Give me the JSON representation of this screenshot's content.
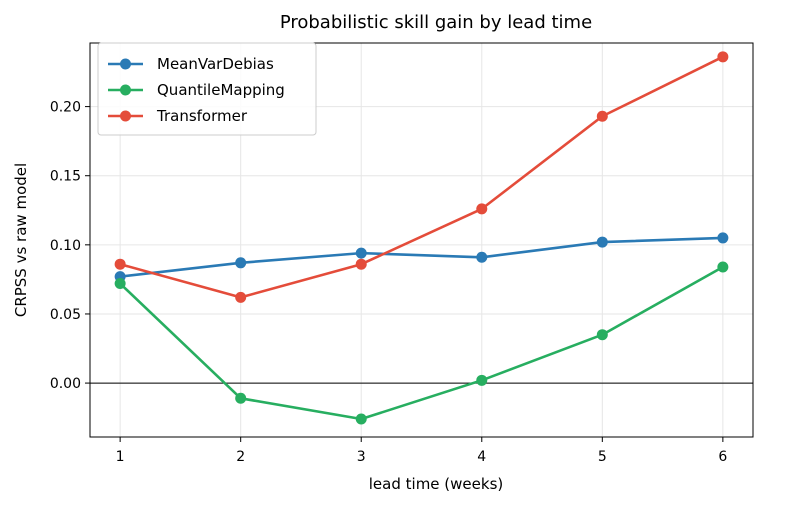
{
  "chart_data": {
    "type": "line",
    "title": "Probabilistic skill gain by lead time",
    "xlabel": "lead time (weeks)",
    "ylabel": "CRPSS vs raw model",
    "x": [
      1,
      2,
      3,
      4,
      5,
      6
    ],
    "xticks": [
      "1",
      "2",
      "3",
      "4",
      "5",
      "6"
    ],
    "yticks": [
      "0.00",
      "0.05",
      "0.10",
      "0.15",
      "0.20"
    ],
    "xlim": [
      0.75,
      6.25
    ],
    "ylim": [
      -0.039,
      0.246
    ],
    "grid": true,
    "zero_line": true,
    "legend_position": "top-left",
    "series": [
      {
        "name": "MeanVarDebias",
        "color": "#2a7ab5",
        "values": [
          0.077,
          0.087,
          0.094,
          0.091,
          0.102,
          0.105
        ]
      },
      {
        "name": "QuantileMapping",
        "color": "#27ae60",
        "values": [
          0.072,
          -0.011,
          -0.026,
          0.002,
          0.035,
          0.084
        ]
      },
      {
        "name": "Transformer",
        "color": "#e44c3a",
        "values": [
          0.086,
          0.062,
          0.086,
          0.126,
          0.193,
          0.236
        ]
      }
    ]
  }
}
